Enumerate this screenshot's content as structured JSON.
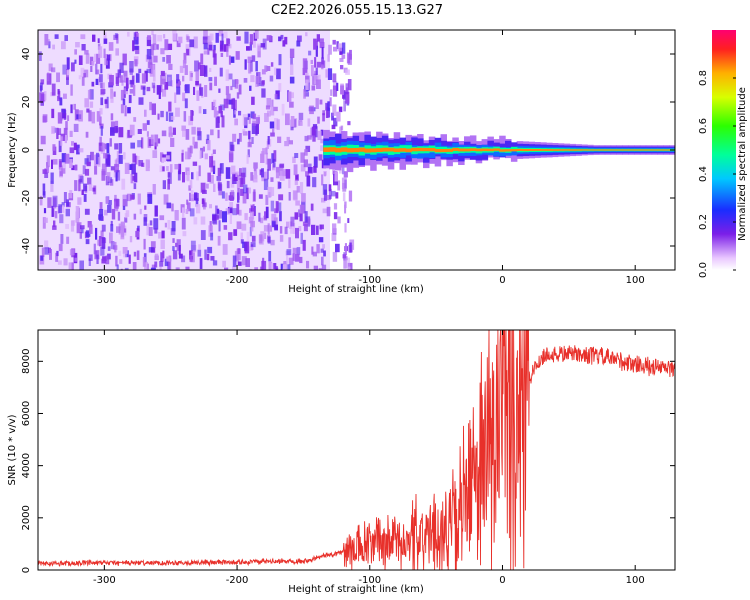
{
  "figure_title": "C2E2.2026.055.15.13.G27",
  "colors": {
    "snr_line": "#e8302a",
    "spectrogram_noise": "#7a1fe6",
    "band_core": "#2fe07a"
  },
  "chart_data": [
    {
      "type": "heatmap",
      "title": "C2E2.2026.055.15.13.G27",
      "xlabel": "Height of straight line (km)",
      "ylabel": "Frequency (Hz)",
      "xlim": [
        -350,
        130
      ],
      "ylim": [
        -50,
        50
      ],
      "xticks": [
        -300,
        -200,
        -100,
        0,
        100
      ],
      "yticks": [
        -40,
        -20,
        0,
        20,
        40
      ],
      "xtick_labels": [
        "-300",
        "-200",
        "-100",
        "0",
        "100"
      ],
      "ytick_labels": [
        "-40",
        "-20",
        "0",
        "20",
        "40"
      ],
      "noise_cutoff_km": -130,
      "signal_band": {
        "x_start": -135,
        "x_end": 130,
        "center_hz": 0,
        "halfwidth_hz": [
          8,
          2
        ]
      },
      "colorbar": {
        "label": "Normalized spectral amplitude",
        "range": [
          0,
          1
        ],
        "ticks": [
          0.0,
          0.2,
          0.4,
          0.6,
          0.8
        ],
        "tick_labels": [
          "0.0",
          "0.2",
          "0.4",
          "0.6",
          "0.8"
        ]
      }
    },
    {
      "type": "line",
      "xlabel": "Height of straight line (km)",
      "ylabel": "SNR (10 * v/v)",
      "xlim": [
        -350,
        130
      ],
      "ylim": [
        0,
        9200
      ],
      "xticks": [
        -300,
        -200,
        -100,
        0,
        100
      ],
      "yticks": [
        0,
        2000,
        4000,
        6000,
        8000
      ],
      "xtick_labels": [
        "-300",
        "-200",
        "-100",
        "0",
        "100"
      ],
      "ytick_labels": [
        "0",
        "2000",
        "4000",
        "6000",
        "8000"
      ],
      "series": [
        {
          "name": "SNR",
          "x": [
            -350,
            -300,
            -250,
            -200,
            -150,
            -120,
            -100,
            -90,
            -70,
            -50,
            -40,
            -30,
            -20,
            -10,
            0,
            10,
            20,
            30,
            50,
            70,
            90,
            110,
            130
          ],
          "y": [
            250,
            270,
            280,
            300,
            350,
            700,
            900,
            1000,
            1200,
            1400,
            1700,
            2400,
            3500,
            4700,
            5400,
            6200,
            7300,
            8200,
            8300,
            8200,
            8000,
            7800,
            7700
          ]
        }
      ]
    }
  ]
}
